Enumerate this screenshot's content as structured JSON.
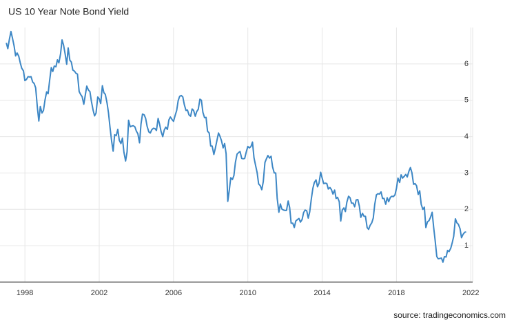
{
  "chart_data": {
    "type": "line",
    "title": "US 10 Year Note Bond Yield",
    "source": "source: tradingeconomics.com",
    "x": [
      1997.0,
      1997.08,
      1997.17,
      1997.25,
      1997.33,
      1997.42,
      1997.5,
      1997.58,
      1997.67,
      1997.75,
      1997.83,
      1997.92,
      1998.0,
      1998.08,
      1998.17,
      1998.25,
      1998.33,
      1998.42,
      1998.5,
      1998.58,
      1998.67,
      1998.75,
      1998.83,
      1998.92,
      1999.0,
      1999.08,
      1999.17,
      1999.25,
      1999.33,
      1999.42,
      1999.5,
      1999.58,
      1999.67,
      1999.75,
      1999.83,
      1999.92,
      2000.0,
      2000.08,
      2000.17,
      2000.25,
      2000.33,
      2000.42,
      2000.5,
      2000.58,
      2000.67,
      2000.75,
      2000.83,
      2000.92,
      2001.0,
      2001.08,
      2001.17,
      2001.25,
      2001.33,
      2001.42,
      2001.5,
      2001.58,
      2001.67,
      2001.75,
      2001.83,
      2001.92,
      2002.0,
      2002.08,
      2002.17,
      2002.25,
      2002.33,
      2002.42,
      2002.5,
      2002.58,
      2002.67,
      2002.75,
      2002.83,
      2002.92,
      2003.0,
      2003.08,
      2003.17,
      2003.25,
      2003.33,
      2003.42,
      2003.5,
      2003.58,
      2003.67,
      2003.75,
      2003.83,
      2003.92,
      2004.0,
      2004.08,
      2004.17,
      2004.25,
      2004.33,
      2004.42,
      2004.5,
      2004.58,
      2004.67,
      2004.75,
      2004.83,
      2004.92,
      2005.0,
      2005.08,
      2005.17,
      2005.25,
      2005.33,
      2005.42,
      2005.5,
      2005.58,
      2005.67,
      2005.75,
      2005.83,
      2005.92,
      2006.0,
      2006.08,
      2006.17,
      2006.25,
      2006.33,
      2006.42,
      2006.5,
      2006.58,
      2006.67,
      2006.75,
      2006.83,
      2006.92,
      2007.0,
      2007.08,
      2007.17,
      2007.25,
      2007.33,
      2007.42,
      2007.5,
      2007.58,
      2007.67,
      2007.75,
      2007.83,
      2007.92,
      2008.0,
      2008.08,
      2008.17,
      2008.25,
      2008.33,
      2008.42,
      2008.5,
      2008.58,
      2008.67,
      2008.75,
      2008.83,
      2008.92,
      2009.0,
      2009.08,
      2009.17,
      2009.25,
      2009.33,
      2009.42,
      2009.5,
      2009.58,
      2009.67,
      2009.75,
      2009.83,
      2009.92,
      2010.0,
      2010.08,
      2010.17,
      2010.25,
      2010.33,
      2010.42,
      2010.5,
      2010.58,
      2010.67,
      2010.75,
      2010.83,
      2010.92,
      2011.0,
      2011.08,
      2011.17,
      2011.25,
      2011.33,
      2011.42,
      2011.5,
      2011.58,
      2011.67,
      2011.75,
      2011.83,
      2011.92,
      2012.0,
      2012.08,
      2012.17,
      2012.25,
      2012.33,
      2012.42,
      2012.5,
      2012.58,
      2012.67,
      2012.75,
      2012.83,
      2012.92,
      2013.0,
      2013.08,
      2013.17,
      2013.25,
      2013.33,
      2013.42,
      2013.5,
      2013.58,
      2013.67,
      2013.75,
      2013.83,
      2013.92,
      2014.0,
      2014.08,
      2014.17,
      2014.25,
      2014.33,
      2014.42,
      2014.5,
      2014.58,
      2014.67,
      2014.75,
      2014.83,
      2014.92,
      2015.0,
      2015.08,
      2015.17,
      2015.25,
      2015.33,
      2015.42,
      2015.5,
      2015.58,
      2015.67,
      2015.75,
      2015.83,
      2015.92,
      2016.0,
      2016.08,
      2016.17,
      2016.25,
      2016.33,
      2016.42,
      2016.5,
      2016.58,
      2016.67,
      2016.75,
      2016.83,
      2016.92,
      2017.0,
      2017.08,
      2017.17,
      2017.25,
      2017.33,
      2017.42,
      2017.5,
      2017.58,
      2017.67,
      2017.75,
      2017.83,
      2017.92,
      2018.0,
      2018.08,
      2018.17,
      2018.25,
      2018.33,
      2018.42,
      2018.5,
      2018.58,
      2018.67,
      2018.75,
      2018.83,
      2018.92,
      2019.0,
      2019.08,
      2019.17,
      2019.25,
      2019.33,
      2019.42,
      2019.5,
      2019.58,
      2019.67,
      2019.75,
      2019.83,
      2019.92,
      2020.0,
      2020.08,
      2020.17,
      2020.25,
      2020.33,
      2020.42,
      2020.5,
      2020.58,
      2020.67,
      2020.75,
      2020.83,
      2020.92,
      2021.0,
      2021.08,
      2021.17,
      2021.25,
      2021.33,
      2021.42,
      2021.5,
      2021.58,
      2021.67,
      2021.75
    ],
    "series": [
      {
        "color": "#3d87c5",
        "values": [
          6.58,
          6.42,
          6.69,
          6.89,
          6.71,
          6.49,
          6.22,
          6.3,
          6.21,
          6.03,
          5.88,
          5.81,
          5.54,
          5.57,
          5.65,
          5.64,
          5.65,
          5.5,
          5.46,
          5.34,
          4.81,
          4.43,
          4.83,
          4.65,
          4.72,
          5.0,
          5.23,
          5.18,
          5.54,
          5.9,
          5.79,
          5.94,
          5.92,
          6.11,
          6.03,
          6.28,
          6.66,
          6.52,
          6.26,
          5.99,
          6.44,
          6.1,
          6.05,
          5.83,
          5.8,
          5.74,
          5.72,
          5.24,
          5.16,
          5.1,
          4.89,
          5.14,
          5.39,
          5.28,
          5.24,
          4.97,
          4.73,
          4.57,
          4.65,
          5.09,
          5.04,
          4.91,
          5.4,
          5.21,
          5.16,
          4.93,
          4.65,
          4.26,
          3.87,
          3.6,
          4.05,
          4.03,
          4.2,
          3.9,
          3.81,
          3.96,
          3.57,
          3.33,
          3.58,
          4.45,
          4.27,
          4.29,
          4.3,
          4.27,
          4.15,
          4.08,
          3.83,
          4.35,
          4.62,
          4.6,
          4.5,
          4.28,
          4.13,
          4.1,
          4.19,
          4.23,
          4.22,
          4.17,
          4.5,
          4.34,
          4.14,
          4.0,
          4.18,
          4.26,
          4.2,
          4.46,
          4.54,
          4.47,
          4.42,
          4.57,
          4.72,
          4.99,
          5.11,
          5.13,
          5.09,
          4.88,
          4.72,
          4.73,
          4.6,
          4.56,
          4.76,
          4.72,
          4.56,
          4.69,
          4.75,
          5.03,
          5.0,
          4.67,
          4.52,
          4.53,
          4.15,
          4.1,
          3.74,
          3.74,
          3.51,
          3.68,
          3.88,
          4.1,
          4.01,
          3.89,
          3.69,
          3.81,
          3.53,
          2.22,
          2.52,
          2.87,
          2.82,
          2.93,
          3.29,
          3.52,
          3.56,
          3.59,
          3.4,
          3.39,
          3.4,
          3.59,
          3.73,
          3.69,
          3.73,
          3.85,
          3.42,
          3.2,
          3.01,
          2.7,
          2.65,
          2.54,
          2.76,
          3.29,
          3.39,
          3.48,
          3.41,
          3.46,
          3.17,
          3.0,
          3.0,
          2.3,
          1.92,
          2.15,
          2.01,
          1.98,
          1.97,
          1.97,
          2.23,
          2.05,
          1.62,
          1.62,
          1.5,
          1.68,
          1.72,
          1.75,
          1.65,
          1.72,
          1.91,
          1.98,
          1.96,
          1.76,
          1.93,
          2.3,
          2.58,
          2.74,
          2.81,
          2.62,
          2.72,
          3.02,
          2.86,
          2.71,
          2.72,
          2.71,
          2.56,
          2.6,
          2.54,
          2.42,
          2.53,
          2.3,
          2.33,
          2.21,
          1.68,
          1.98,
          2.04,
          1.94,
          2.2,
          2.36,
          2.32,
          2.17,
          2.17,
          2.07,
          2.26,
          2.27,
          2.09,
          1.78,
          1.89,
          1.81,
          1.81,
          1.5,
          1.45,
          1.56,
          1.63,
          1.76,
          2.14,
          2.4,
          2.43,
          2.42,
          2.48,
          2.3,
          2.3,
          2.14,
          2.32,
          2.21,
          2.33,
          2.36,
          2.35,
          2.4,
          2.58,
          2.86,
          2.74,
          2.95,
          2.86,
          2.91,
          2.96,
          2.89,
          3.05,
          3.15,
          3.01,
          2.69,
          2.71,
          2.65,
          2.41,
          2.51,
          2.14,
          2.0,
          2.06,
          1.5,
          1.66,
          1.69,
          1.78,
          1.92,
          1.51,
          1.15,
          0.7,
          0.64,
          0.65,
          0.66,
          0.55,
          0.7,
          0.69,
          0.87,
          0.84,
          0.93,
          1.08,
          1.26,
          1.74,
          1.63,
          1.59,
          1.47,
          1.22,
          1.31,
          1.37,
          1.38
        ]
      }
    ],
    "xlim": [
      1996.66,
      2022.1
    ],
    "xticks": [
      1998,
      2002,
      2006,
      2010,
      2014,
      2018,
      2022
    ],
    "ylim": [
      0,
      7
    ],
    "yticks": [
      1,
      2,
      3,
      4,
      5,
      6
    ],
    "grid": true
  }
}
